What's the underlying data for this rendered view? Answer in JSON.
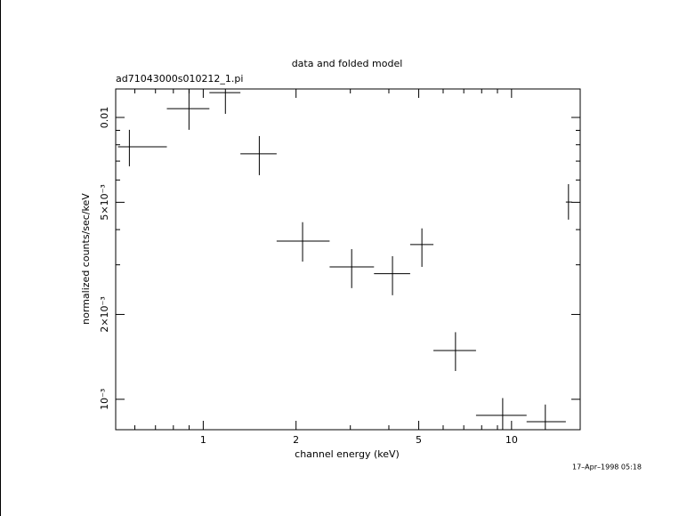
{
  "chart_data": {
    "type": "errorbar",
    "title": "data and folded model",
    "subtitle": "ad71043000s010212_1.pi",
    "x_label": "channel energy (keV)",
    "y_label": "normalized counts/sec/keV",
    "timestamp": "17–Apr–1998 05:18",
    "x_log": true,
    "y_log": true,
    "color": "#000000",
    "xlim": [
      0.52,
      16.7
    ],
    "ylim": [
      0.00078,
      0.01262
    ],
    "xticks": [
      1,
      2,
      5,
      10
    ],
    "xminor_ticks": [
      0.6,
      0.7,
      0.8,
      0.9,
      3,
      4,
      6,
      7,
      8,
      9
    ],
    "yticks": [
      {
        "value": 0.001,
        "label": "10⁻³"
      },
      {
        "value": 0.002,
        "label": "2×10⁻³"
      },
      {
        "value": 0.005,
        "label": "5×10⁻³"
      },
      {
        "value": 0.01,
        "label": "0.01"
      }
    ],
    "yminor_ticks": [
      0.003,
      0.004,
      0.006,
      0.007,
      0.008,
      0.009
    ],
    "series": [
      {
        "name": "data",
        "x": [
          0.576,
          0.899,
          1.18,
          1.52,
          2.1,
          3.03,
          4.11,
          5.12,
          6.58,
          9.36,
          12.87,
          15.3
        ],
        "x_low": [
          0.529,
          0.762,
          1.047,
          1.32,
          1.73,
          2.57,
          3.58,
          4.69,
          5.58,
          7.67,
          11.19,
          15.0
        ],
        "x_high": [
          0.762,
          1.047,
          1.32,
          1.73,
          2.57,
          3.58,
          4.69,
          5.58,
          7.67,
          11.19,
          15.0,
          15.7
        ],
        "values": [
          0.00787,
          0.01075,
          0.01225,
          0.00743,
          0.00364,
          0.00295,
          0.00279,
          0.00354,
          0.00149,
          0.000877,
          0.000833,
          0.00501
        ],
        "y_low": [
          0.00671,
          0.00904,
          0.0103,
          0.00624,
          0.00308,
          0.00248,
          0.00234,
          0.00295,
          0.00126,
          0.00076,
          0.00073,
          0.00434
        ],
        "y_high": [
          0.00904,
          0.0128,
          0.014,
          0.00859,
          0.00425,
          0.00341,
          0.00322,
          0.00404,
          0.00173,
          0.00101,
          0.000958,
          0.0058
        ]
      }
    ]
  }
}
